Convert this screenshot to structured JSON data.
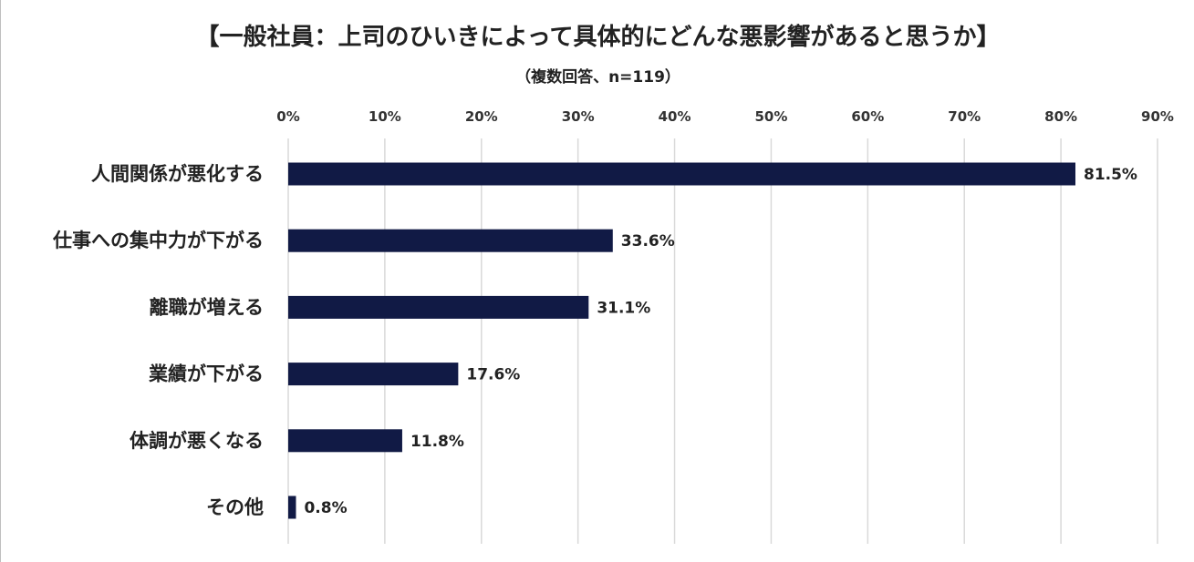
{
  "chart_data": {
    "type": "bar",
    "orientation": "horizontal",
    "title": "【一般社員：上司のひいきによって具体的にどんな悪影響があると思うか】",
    "subtitle": "（複数回答、n=119）",
    "categories": [
      "人間関係が悪化する",
      "仕事への集中力が下がる",
      "離職が増える",
      "業績が下がる",
      "体調が悪くなる",
      "その他"
    ],
    "values": [
      81.5,
      33.6,
      31.1,
      17.6,
      11.8,
      0.8
    ],
    "value_labels": [
      "81.5%",
      "33.6%",
      "31.1%",
      "17.6%",
      "11.8%",
      "0.8%"
    ],
    "xlim": [
      0,
      90
    ],
    "xticks": [
      0,
      10,
      20,
      30,
      40,
      50,
      60,
      70,
      80,
      90
    ],
    "xtick_labels": [
      "0%",
      "10%",
      "20%",
      "30%",
      "40%",
      "50%",
      "60%",
      "70%",
      "80%",
      "90%"
    ],
    "axis_position": "top",
    "grid": true,
    "bar_color": "#111a45",
    "grid_color": "#d9d9d9"
  }
}
